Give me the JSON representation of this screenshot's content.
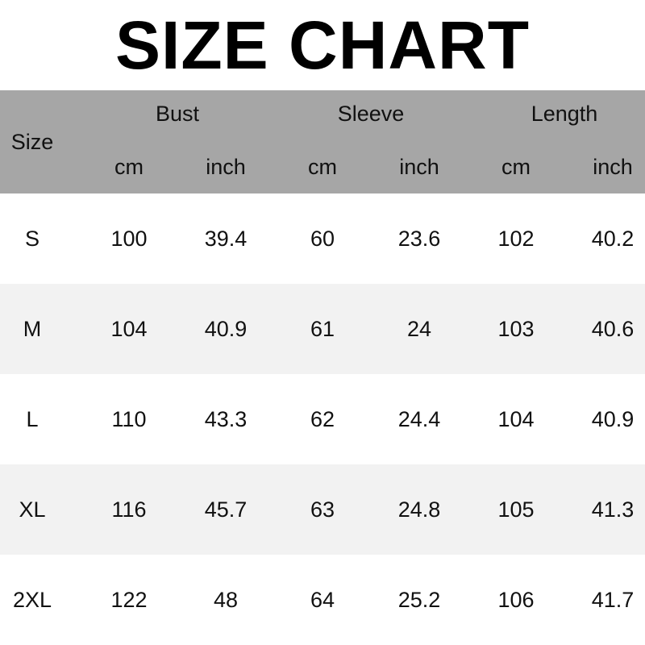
{
  "title": "SIZE CHART",
  "header": {
    "size": "Size",
    "groups": [
      "Bust",
      "Sleeve",
      "Length"
    ],
    "units": [
      "cm",
      "inch",
      "cm",
      "inch",
      "cm",
      "inch"
    ]
  },
  "rows": [
    [
      "S",
      "100",
      "39.4",
      "60",
      "23.6",
      "102",
      "40.2"
    ],
    [
      "M",
      "104",
      "40.9",
      "61",
      "24",
      "103",
      "40.6"
    ],
    [
      "L",
      "110",
      "43.3",
      "62",
      "24.4",
      "104",
      "40.9"
    ],
    [
      "XL",
      "116",
      "45.7",
      "63",
      "24.8",
      "105",
      "41.3"
    ],
    [
      "2XL",
      "122",
      "48",
      "64",
      "25.2",
      "106",
      "41.7"
    ]
  ],
  "colors": {
    "header_bg": "#a6a6a6",
    "alt_row_bg": "#f2f2f2"
  }
}
